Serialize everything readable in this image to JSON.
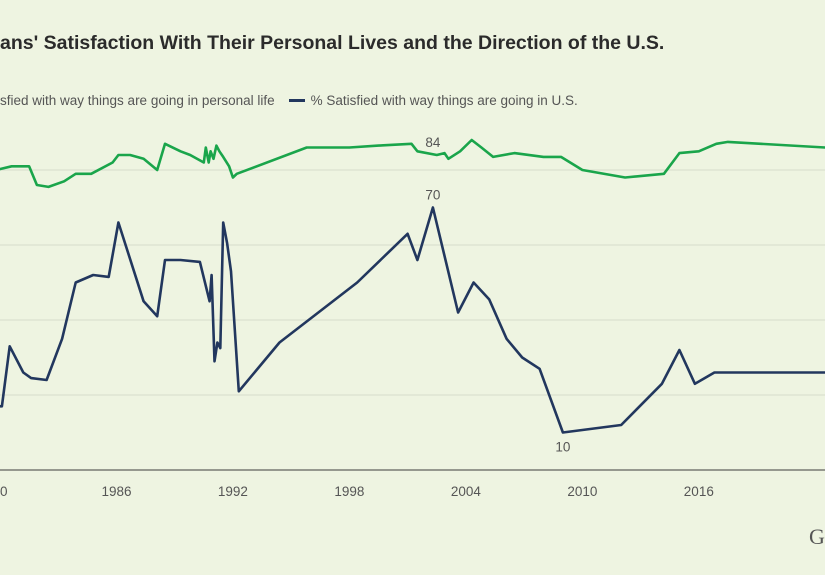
{
  "chart_data": {
    "type": "line",
    "title": "ans' Satisfaction With Their Personal Lives and the Direction of the U.S.",
    "xlabel": "",
    "ylabel": "",
    "xlim": [
      1980,
      2022.5
    ],
    "ylim": [
      0,
      100
    ],
    "y_ticks": [
      0,
      20,
      40,
      60,
      80,
      100
    ],
    "x_ticks": [
      "0",
      "1986",
      "1992",
      "1998",
      "2004",
      "2010",
      "2016"
    ],
    "x_tick_values": [
      1980,
      1986,
      1992,
      1998,
      2004,
      2010,
      2016
    ],
    "grid": true,
    "legend_position": "top-left",
    "series": [
      {
        "name": "sfied with way things are going in personal life",
        "color": "#1aa54b",
        "points": [
          [
            1979.8,
            80
          ],
          [
            1980.6,
            81
          ],
          [
            1981.5,
            81
          ],
          [
            1981.9,
            76
          ],
          [
            1982.5,
            75.5
          ],
          [
            1983.3,
            77
          ],
          [
            1983.9,
            79
          ],
          [
            1984.7,
            79
          ],
          [
            1985.8,
            82
          ],
          [
            1986.1,
            84
          ],
          [
            1986.7,
            84
          ],
          [
            1987.4,
            83
          ],
          [
            1988.1,
            80
          ],
          [
            1988.5,
            87
          ],
          [
            1989.3,
            85
          ],
          [
            1989.8,
            84
          ],
          [
            1990.5,
            82
          ],
          [
            1990.6,
            86
          ],
          [
            1990.75,
            82
          ],
          [
            1990.85,
            85
          ],
          [
            1991.0,
            83
          ],
          [
            1991.15,
            86.5
          ],
          [
            1991.3,
            85
          ],
          [
            1991.5,
            83.5
          ],
          [
            1991.8,
            81
          ],
          [
            1992.0,
            78
          ],
          [
            1992.2,
            79
          ],
          [
            1995.8,
            86
          ],
          [
            1998.0,
            86
          ],
          [
            1999.5,
            86.5
          ],
          [
            2001.2,
            87
          ],
          [
            2001.5,
            85
          ],
          [
            2002.5,
            84
          ],
          [
            2002.9,
            84.5
          ],
          [
            2003.1,
            83
          ],
          [
            2003.7,
            85
          ],
          [
            2004.3,
            88
          ],
          [
            2004.8,
            86
          ],
          [
            2005.4,
            83.5
          ],
          [
            2006.5,
            84.5
          ],
          [
            2008.0,
            83.5
          ],
          [
            2008.9,
            83.5
          ],
          [
            2010.0,
            80
          ],
          [
            2012.2,
            78
          ],
          [
            2014.2,
            79
          ],
          [
            2015.0,
            84.5
          ],
          [
            2016.0,
            85
          ],
          [
            2016.9,
            87
          ],
          [
            2017.5,
            87.5
          ],
          [
            2022.5,
            86
          ]
        ]
      },
      {
        "name": "% Satisfied with way things are going in U.S.",
        "color": "#22375e",
        "points": [
          [
            1979.8,
            17
          ],
          [
            1980.1,
            17
          ],
          [
            1980.5,
            33
          ],
          [
            1981.2,
            26
          ],
          [
            1981.6,
            24.5
          ],
          [
            1982.4,
            24
          ],
          [
            1983.2,
            35
          ],
          [
            1983.9,
            50
          ],
          [
            1984.8,
            52
          ],
          [
            1985.6,
            51.5
          ],
          [
            1986.1,
            66
          ],
          [
            1987.4,
            45
          ],
          [
            1988.1,
            41
          ],
          [
            1988.5,
            56
          ],
          [
            1989.3,
            56
          ],
          [
            1990.3,
            55.5
          ],
          [
            1990.8,
            45
          ],
          [
            1990.9,
            52
          ],
          [
            1991.05,
            29
          ],
          [
            1991.2,
            34
          ],
          [
            1991.35,
            32.5
          ],
          [
            1991.5,
            66
          ],
          [
            1991.7,
            60.5
          ],
          [
            1991.9,
            53
          ],
          [
            1992.3,
            21
          ],
          [
            1994.4,
            34
          ],
          [
            1998.4,
            50
          ],
          [
            2001.0,
            63
          ],
          [
            2001.5,
            56
          ],
          [
            2002.3,
            70
          ],
          [
            2003.6,
            42
          ],
          [
            2004.4,
            50
          ],
          [
            2005.2,
            45.5
          ],
          [
            2006.1,
            35
          ],
          [
            2006.9,
            30
          ],
          [
            2007.8,
            27
          ],
          [
            2009.0,
            10
          ],
          [
            2012.0,
            12
          ],
          [
            2014.1,
            23
          ],
          [
            2015.0,
            32
          ],
          [
            2015.8,
            23
          ],
          [
            2016.8,
            26
          ],
          [
            2017.5,
            26
          ],
          [
            2022.5,
            26
          ]
        ]
      }
    ],
    "annotations": [
      {
        "id": "annotation-84",
        "text": "84",
        "x": 2002.3,
        "y": 84,
        "anchor": "above"
      },
      {
        "id": "annotation-70",
        "text": "70",
        "x": 2002.3,
        "y": 70,
        "anchor": "above"
      },
      {
        "id": "annotation-10",
        "text": "10",
        "x": 2009.0,
        "y": 10,
        "anchor": "below"
      }
    ]
  },
  "brand": {
    "text": "G"
  }
}
